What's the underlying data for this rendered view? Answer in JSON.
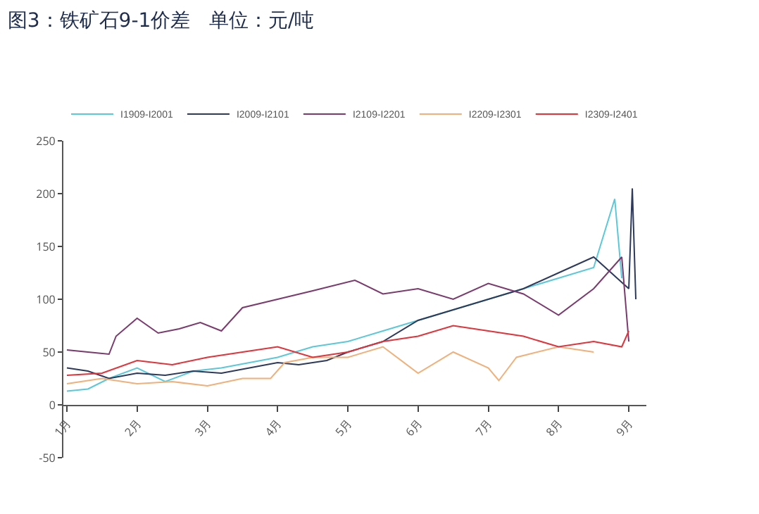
{
  "chart_data": {
    "type": "line",
    "title": "图3：铁矿石9-1价差   单位：元/吨",
    "xlim": [
      0.95,
      9.25
    ],
    "xticks": [
      {
        "value": 1,
        "label": "1月"
      },
      {
        "value": 2,
        "label": "2月"
      },
      {
        "value": 3,
        "label": "3月"
      },
      {
        "value": 4,
        "label": "4月"
      },
      {
        "value": 5,
        "label": "5月"
      },
      {
        "value": 6,
        "label": "6月"
      },
      {
        "value": 7,
        "label": "7月"
      },
      {
        "value": 8,
        "label": "8月"
      },
      {
        "value": 9,
        "label": "9月"
      }
    ],
    "ylim": [
      -50,
      250
    ],
    "yticks": [
      -50,
      0,
      50,
      100,
      150,
      200,
      250
    ],
    "grid": false,
    "legend": "top",
    "marker": "none",
    "line_style": "solid",
    "series": [
      {
        "name": "I1909-I2001",
        "color": "#5bc8d8",
        "x": [
          1,
          1.3,
          1.6,
          2,
          2.4,
          2.8,
          3.2,
          3.6,
          4,
          4.5,
          5,
          5.5,
          6,
          6.5,
          7,
          7.5,
          8,
          8.5,
          8.8,
          8.9
        ],
        "values": [
          13,
          15,
          25,
          35,
          22,
          32,
          35,
          40,
          45,
          55,
          60,
          70,
          80,
          90,
          100,
          110,
          120,
          130,
          195,
          120
        ]
      },
      {
        "name": "I2009-I2101",
        "color": "#2e3a5c",
        "x": [
          1,
          1.3,
          1.6,
          2,
          2.4,
          2.8,
          3.2,
          3.6,
          4,
          4.3,
          4.7,
          5,
          5.5,
          6,
          6.5,
          7,
          7.5,
          8,
          8.5,
          9,
          9.05,
          9.1
        ],
        "values": [
          35,
          32,
          25,
          30,
          28,
          32,
          30,
          35,
          40,
          38,
          42,
          50,
          60,
          80,
          90,
          100,
          110,
          125,
          140,
          110,
          205,
          100
        ]
      },
      {
        "name": "I2109-I2201",
        "color": "#7a3a6e",
        "x": [
          1,
          1.3,
          1.6,
          1.7,
          2,
          2.3,
          2.6,
          2.9,
          3.2,
          3.5,
          4,
          4.5,
          5.1,
          5.5,
          6,
          6.5,
          7,
          7.5,
          8,
          8.5,
          8.9,
          9
        ],
        "values": [
          52,
          50,
          48,
          65,
          82,
          68,
          72,
          78,
          70,
          92,
          100,
          108,
          118,
          105,
          110,
          100,
          115,
          105,
          85,
          110,
          140,
          60
        ]
      },
      {
        "name": "I2209-I2301",
        "color": "#f0b07a",
        "x": [
          1,
          1.5,
          2,
          2.5,
          3,
          3.5,
          3.9,
          4.1,
          4.5,
          5,
          5.5,
          6,
          6.5,
          7,
          7.15,
          7.4,
          8,
          8.5
        ],
        "values": [
          20,
          25,
          20,
          22,
          18,
          25,
          25,
          40,
          45,
          45,
          55,
          30,
          50,
          35,
          23,
          45,
          55,
          50
        ]
      },
      {
        "name": "I2309-I2401",
        "color": "#e0343c",
        "x": [
          1,
          1.5,
          2,
          2.5,
          3,
          3.5,
          4,
          4.5,
          5,
          5.5,
          6,
          6.5,
          7,
          7.5,
          8,
          8.5,
          8.9,
          9
        ],
        "values": [
          28,
          30,
          42,
          38,
          45,
          50,
          55,
          45,
          50,
          60,
          65,
          75,
          70,
          65,
          55,
          60,
          55,
          70
        ]
      }
    ]
  }
}
